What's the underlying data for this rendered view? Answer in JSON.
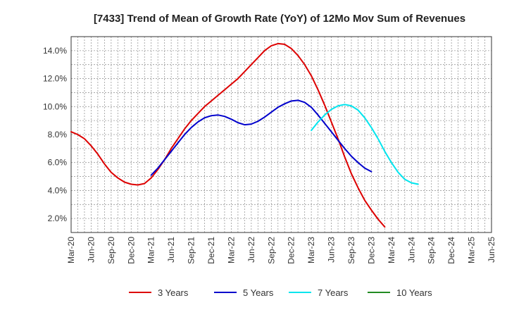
{
  "chart_data": {
    "type": "line",
    "title": "[7433]  Trend of Mean of Growth Rate (YoY) of 12Mo Mov Sum of Revenues",
    "xlabel": "",
    "ylabel": "",
    "x_ticks": [
      "Mar-20",
      "Jun-20",
      "Sep-20",
      "Dec-20",
      "Mar-21",
      "Jun-21",
      "Sep-21",
      "Dec-21",
      "Mar-22",
      "Jun-22",
      "Sep-22",
      "Dec-22",
      "Mar-23",
      "Jun-23",
      "Sep-23",
      "Dec-23",
      "Mar-24",
      "Jun-24",
      "Sep-24",
      "Dec-24",
      "Mar-25",
      "Jun-25"
    ],
    "y_ticks": [
      2.0,
      4.0,
      6.0,
      8.0,
      10.0,
      12.0,
      14.0
    ],
    "y_tick_labels": [
      "2.0%",
      "4.0%",
      "6.0%",
      "8.0%",
      "10.0%",
      "12.0%",
      "14.0%"
    ],
    "ylim": [
      1.0,
      15.0
    ],
    "grid": true,
    "legend_position": "bottom",
    "series": [
      {
        "name": "3 Years",
        "color": "#dd0000",
        "start_index": 0,
        "values": [
          8.2,
          8.0,
          7.7,
          7.2,
          6.6,
          5.9,
          5.3,
          4.9,
          4.6,
          4.45,
          4.4,
          4.5,
          4.9,
          5.5,
          6.2,
          7.0,
          7.7,
          8.4,
          9.0,
          9.5,
          10.0,
          10.4,
          10.8,
          11.2,
          11.6,
          12.0,
          12.5,
          13.0,
          13.5,
          14.0,
          14.35,
          14.5,
          14.45,
          14.15,
          13.65,
          13.0,
          12.2,
          11.2,
          10.1,
          8.9,
          7.7,
          6.4,
          5.2,
          4.2,
          3.3,
          2.6,
          1.95,
          1.4
        ]
      },
      {
        "name": "5 Years",
        "color": "#0000cc",
        "start_index": 12,
        "values": [
          5.1,
          5.6,
          6.2,
          6.8,
          7.4,
          8.0,
          8.5,
          8.9,
          9.2,
          9.35,
          9.4,
          9.3,
          9.1,
          8.85,
          8.7,
          8.75,
          8.95,
          9.25,
          9.6,
          9.95,
          10.2,
          10.4,
          10.45,
          10.3,
          9.95,
          9.4,
          8.8,
          8.2,
          7.6,
          7.0,
          6.45,
          6.0,
          5.6,
          5.35
        ]
      },
      {
        "name": "7 Years",
        "color": "#00e5ee",
        "start_index": 36,
        "values": [
          8.3,
          8.9,
          9.4,
          9.8,
          10.05,
          10.15,
          10.05,
          9.75,
          9.2,
          8.5,
          7.7,
          6.8,
          6.0,
          5.3,
          4.8,
          4.55,
          4.45
        ]
      },
      {
        "name": "10 Years",
        "color": "#228b22",
        "start_index": 0,
        "values": []
      }
    ]
  }
}
